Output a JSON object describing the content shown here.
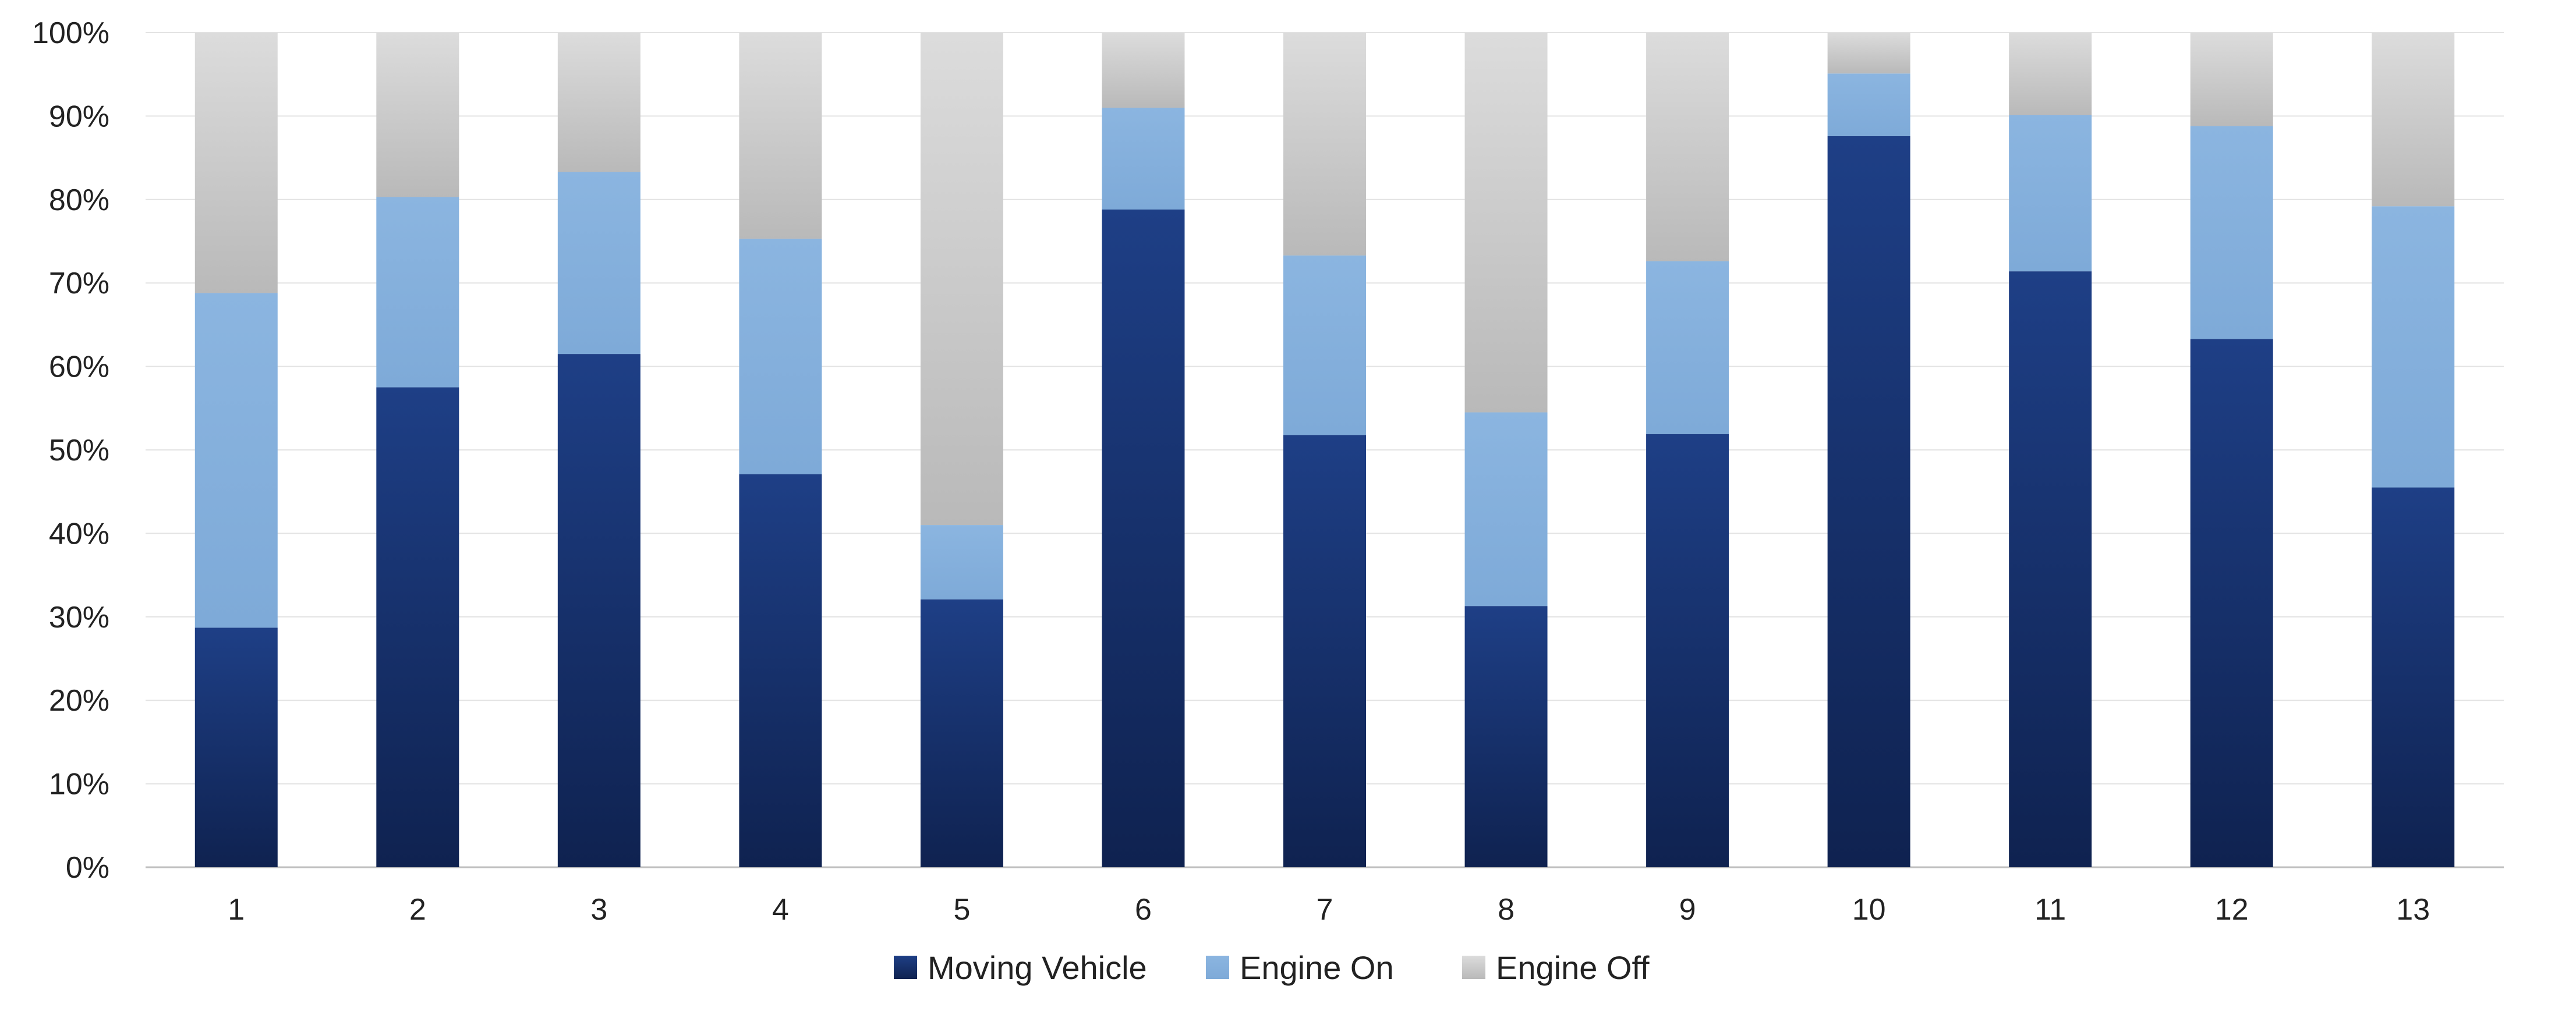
{
  "chart_data": {
    "type": "bar",
    "stacked": true,
    "title": "",
    "xlabel": "",
    "ylabel": "",
    "categories": [
      "1",
      "2",
      "3",
      "4",
      "5",
      "6",
      "7",
      "8",
      "9",
      "10",
      "11",
      "12",
      "13"
    ],
    "series": [
      {
        "name": "Moving Vehicle",
        "color": "#1b3a7a",
        "values": [
          28.7,
          57.5,
          61.5,
          47.1,
          32.1,
          78.8,
          51.8,
          31.3,
          51.9,
          87.6,
          71.4,
          63.3,
          45.5
        ]
      },
      {
        "name": "Engine On",
        "color": "#85b0dc",
        "values": [
          40.1,
          22.8,
          21.8,
          28.2,
          8.9,
          12.2,
          21.5,
          23.2,
          20.7,
          7.5,
          18.7,
          25.5,
          33.7
        ]
      },
      {
        "name": "Engine Off",
        "color": "#c8c8c8",
        "values": [
          31.2,
          19.7,
          16.7,
          24.7,
          59.0,
          9.0,
          26.7,
          45.5,
          27.4,
          4.9,
          9.9,
          11.2,
          20.8
        ]
      }
    ],
    "yticks": [
      "0%",
      "10%",
      "20%",
      "30%",
      "40%",
      "50%",
      "60%",
      "70%",
      "80%",
      "90%",
      "100%"
    ],
    "ylim": [
      0,
      100
    ],
    "grid": true,
    "legend_position": "bottom"
  }
}
